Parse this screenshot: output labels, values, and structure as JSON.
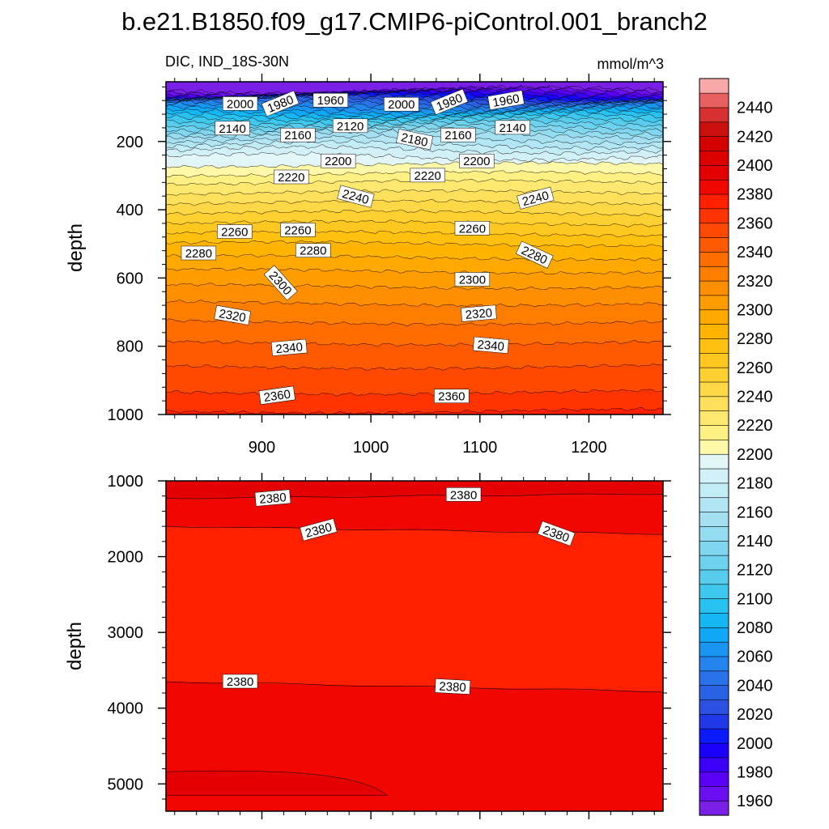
{
  "title": "b.e21.B1850.f09_g17.CMIP6-piControl.001_branch2",
  "chart_data": [
    {
      "type": "contour",
      "panel": "upper",
      "left_label": "DIC, IND_18S-30N",
      "right_label": "mmol/m^3",
      "ylabel": "depth",
      "xlabel": "",
      "xlim": [
        812,
        1268
      ],
      "ylim": [
        1000,
        25
      ],
      "y_reversed": true,
      "xticks": [
        900,
        1000,
        1100,
        1200
      ],
      "xtick_labels": [
        "900",
        "1000",
        "1100",
        "1200"
      ],
      "yticks": [
        200,
        400,
        600,
        800,
        1000
      ],
      "ytick_labels": [
        "200",
        "400",
        "600",
        "800",
        "1000"
      ],
      "contour_levels": [
        1950,
        1960,
        1970,
        1980,
        1990,
        2000,
        2010,
        2020,
        2030,
        2040,
        2050,
        2060,
        2070,
        2080,
        2090,
        2100,
        2110,
        2120,
        2130,
        2140,
        2150,
        2160,
        2170,
        2180,
        2190,
        2200,
        2210,
        2220,
        2230,
        2240,
        2250,
        2260,
        2270,
        2280,
        2290,
        2300,
        2310,
        2320,
        2330,
        2340,
        2350,
        2360,
        2370
      ],
      "level_depths": [
        50,
        52,
        56,
        60,
        64,
        68,
        72,
        76,
        80,
        85,
        92,
        100,
        108,
        115,
        122,
        130,
        140,
        150,
        160,
        170,
        180,
        195,
        210,
        225,
        245,
        268,
        295,
        320,
        350,
        380,
        410,
        440,
        470,
        500,
        540,
        580,
        625,
        675,
        730,
        790,
        860,
        935,
        990
      ],
      "contour_labels": [
        {
          "x": 880,
          "depth": 90,
          "text": "2000",
          "angle": 0
        },
        {
          "x": 917,
          "depth": 90,
          "text": "1980",
          "angle": -22
        },
        {
          "x": 963,
          "depth": 80,
          "text": "1960",
          "angle": 0
        },
        {
          "x": 1028,
          "depth": 92,
          "text": "2000",
          "angle": 0
        },
        {
          "x": 1072,
          "depth": 85,
          "text": "1980",
          "angle": -22
        },
        {
          "x": 1124,
          "depth": 80,
          "text": "1960",
          "angle": -10
        },
        {
          "x": 873,
          "depth": 162,
          "text": "2140",
          "angle": 0
        },
        {
          "x": 1130,
          "depth": 160,
          "text": "2140",
          "angle": 0
        },
        {
          "x": 981,
          "depth": 155,
          "text": "2120",
          "angle": 0
        },
        {
          "x": 933,
          "depth": 182,
          "text": "2160",
          "angle": 0
        },
        {
          "x": 1080,
          "depth": 182,
          "text": "2160",
          "angle": 0
        },
        {
          "x": 1040,
          "depth": 195,
          "text": "2180",
          "angle": 12
        },
        {
          "x": 970,
          "depth": 258,
          "text": "2200",
          "angle": 0
        },
        {
          "x": 1097,
          "depth": 258,
          "text": "2200",
          "angle": 0
        },
        {
          "x": 927,
          "depth": 305,
          "text": "2220",
          "angle": 0
        },
        {
          "x": 1052,
          "depth": 300,
          "text": "2220",
          "angle": 0
        },
        {
          "x": 986,
          "depth": 362,
          "text": "2240",
          "angle": 15
        },
        {
          "x": 1151,
          "depth": 367,
          "text": "2240",
          "angle": -15
        },
        {
          "x": 875,
          "depth": 465,
          "text": "2260",
          "angle": 0
        },
        {
          "x": 933,
          "depth": 460,
          "text": "2260",
          "angle": 0
        },
        {
          "x": 1093,
          "depth": 455,
          "text": "2260",
          "angle": 0
        },
        {
          "x": 842,
          "depth": 528,
          "text": "2280",
          "angle": 0
        },
        {
          "x": 947,
          "depth": 520,
          "text": "2280",
          "angle": 0
        },
        {
          "x": 1150,
          "depth": 533,
          "text": "2280",
          "angle": 25
        },
        {
          "x": 917,
          "depth": 615,
          "text": "2300",
          "angle": 48
        },
        {
          "x": 1093,
          "depth": 605,
          "text": "2300",
          "angle": 0
        },
        {
          "x": 873,
          "depth": 710,
          "text": "2320",
          "angle": 10
        },
        {
          "x": 1099,
          "depth": 705,
          "text": "2320",
          "angle": -5
        },
        {
          "x": 925,
          "depth": 805,
          "text": "2340",
          "angle": -5
        },
        {
          "x": 1110,
          "depth": 798,
          "text": "2340",
          "angle": 5
        },
        {
          "x": 914,
          "depth": 945,
          "text": "2360",
          "angle": -8
        },
        {
          "x": 1074,
          "depth": 947,
          "text": "2360",
          "angle": 0
        }
      ]
    },
    {
      "type": "contour",
      "panel": "lower",
      "ylabel": "depth",
      "xlim": [
        812,
        1268
      ],
      "ylim": [
        5360,
        1000
      ],
      "y_reversed": true,
      "xticks": [
        900,
        1000,
        1100,
        1200
      ],
      "yticks": [
        1000,
        2000,
        3000,
        4000,
        5000
      ],
      "ytick_labels": [
        "1000",
        "2000",
        "3000",
        "4000",
        "5000"
      ],
      "regions": [
        {
          "value": 2390,
          "depth_from": 1000,
          "depth_to": 1200
        },
        {
          "value": 2380,
          "depth_from": 1200,
          "depth_to": 1650
        },
        {
          "value": 2370,
          "depth_from": 1650,
          "depth_to": 3700
        },
        {
          "value": 2380,
          "depth_from": 3700,
          "depth_to": 5360
        },
        {
          "value": 2390,
          "depth_from": 4840,
          "depth_to": 5150,
          "note": "patch at west side"
        }
      ],
      "contour_labels": [
        {
          "x": 910,
          "depth": 1230,
          "text": "2380",
          "angle": -5
        },
        {
          "x": 1085,
          "depth": 1185,
          "text": "2380",
          "angle": 0
        },
        {
          "x": 952,
          "depth": 1650,
          "text": "2380",
          "angle": -15
        },
        {
          "x": 1170,
          "depth": 1700,
          "text": "2380",
          "angle": 20
        },
        {
          "x": 880,
          "depth": 3650,
          "text": "2380",
          "angle": 0
        },
        {
          "x": 1075,
          "depth": 3720,
          "text": "2380",
          "angle": 3
        }
      ]
    }
  ],
  "colorbar": {
    "levels": [
      1950,
      1960,
      1970,
      1980,
      1990,
      2000,
      2010,
      2020,
      2030,
      2040,
      2050,
      2060,
      2070,
      2080,
      2090,
      2100,
      2110,
      2120,
      2130,
      2140,
      2150,
      2160,
      2170,
      2180,
      2190,
      2200,
      2210,
      2220,
      2230,
      2240,
      2250,
      2260,
      2270,
      2280,
      2290,
      2300,
      2310,
      2320,
      2330,
      2340,
      2350,
      2360,
      2370,
      2380,
      2390,
      2400,
      2410,
      2420,
      2430,
      2440,
      2450
    ],
    "colors": [
      "#7a1fe6",
      "#6a10f0",
      "#5a00f5",
      "#3c00f8",
      "#1a00fa",
      "#0a1afa",
      "#2038e8",
      "#2c50e0",
      "#2a62e4",
      "#2a72ea",
      "#2484ee",
      "#1a96f2",
      "#10a8f6",
      "#14b6f4",
      "#28c2f0",
      "#3ec8ee",
      "#58ccec",
      "#6cd2ee",
      "#80d6ee",
      "#94dcf0",
      "#a4e0f2",
      "#b2e6f4",
      "#c2ecf6",
      "#d2f0f8",
      "#e2f6f8",
      "#fff8a8",
      "#fff084",
      "#ffe870",
      "#ffe05c",
      "#ffd848",
      "#ffd032",
      "#ffc820",
      "#ffc010",
      "#ffb400",
      "#ffa800",
      "#ff9c00",
      "#ff8e00",
      "#ff7e00",
      "#ff6c00",
      "#ff5a00",
      "#ff4800",
      "#ff3400",
      "#ff2000",
      "#f00800",
      "#e40000",
      "#dc0000",
      "#d40000",
      "#cc1010",
      "#d83030",
      "#e86060",
      "#f8a8a8"
    ],
    "tick_labels": [
      "1960",
      "1980",
      "2000",
      "2020",
      "2040",
      "2060",
      "2080",
      "2100",
      "2120",
      "2140",
      "2160",
      "2180",
      "2200",
      "2220",
      "2240",
      "2260",
      "2280",
      "2300",
      "2320",
      "2340",
      "2360",
      "2380",
      "2400",
      "2420",
      "2440"
    ]
  }
}
